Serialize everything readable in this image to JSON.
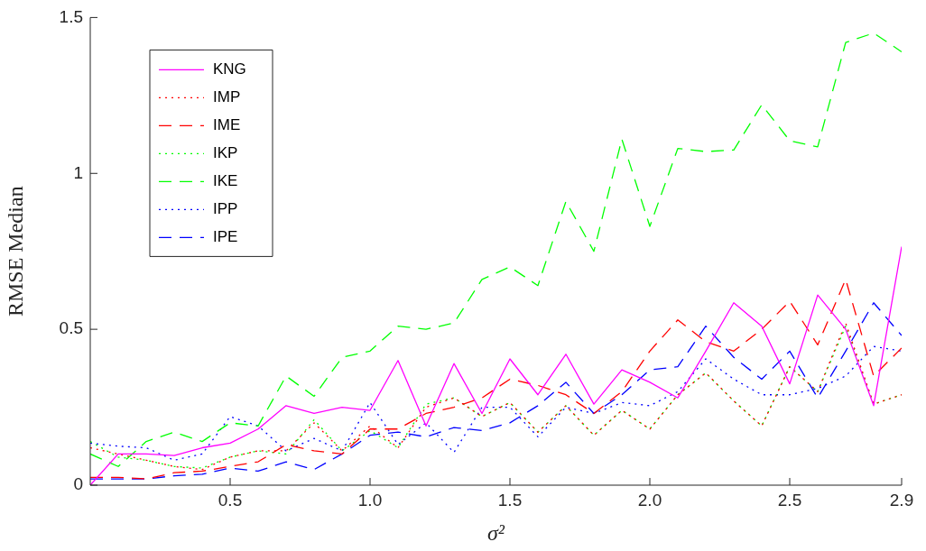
{
  "chart_data": {
    "type": "line",
    "xlabel": "σ²",
    "ylabel": "RMSE Median",
    "x": [
      0,
      0.1,
      0.2,
      0.3,
      0.4,
      0.5,
      0.6,
      0.7,
      0.8,
      0.9,
      1.0,
      1.1,
      1.2,
      1.3,
      1.4,
      1.5,
      1.6,
      1.7,
      1.8,
      1.9,
      2.0,
      2.1,
      2.2,
      2.3,
      2.4,
      2.5,
      2.6,
      2.7,
      2.8,
      2.9
    ],
    "xlim": [
      0,
      2.9
    ],
    "xticks": [
      0.5,
      {
        "value": 1,
        "label": "1.0"
      },
      1.5,
      {
        "value": 2,
        "label": "2.0"
      },
      2.5,
      2.9
    ],
    "ylim": [
      0,
      1.5
    ],
    "yticks": [
      0,
      0.5,
      1,
      1.5
    ],
    "grid": false,
    "legend": "top left",
    "marker": "none",
    "series": [
      {
        "name": "KNG",
        "color": "#ff00ff",
        "line_style": "solid",
        "values": [
          0.0,
          0.1,
          0.1,
          0.095,
          0.12,
          0.135,
          0.18,
          0.255,
          0.23,
          0.25,
          0.24,
          0.4,
          0.19,
          0.39,
          0.23,
          0.405,
          0.29,
          0.42,
          0.26,
          0.37,
          0.33,
          0.28,
          0.43,
          0.585,
          0.51,
          0.325,
          0.61,
          0.5,
          0.255,
          0.765
        ]
      },
      {
        "name": "IMP",
        "color": "#ff0000",
        "line_style": "dotted",
        "values": [
          0.12,
          0.1,
          0.08,
          0.06,
          0.05,
          0.09,
          0.11,
          0.11,
          0.2,
          0.11,
          0.19,
          0.12,
          0.25,
          0.28,
          0.22,
          0.265,
          0.17,
          0.255,
          0.16,
          0.24,
          0.18,
          0.29,
          0.36,
          0.27,
          0.19,
          0.38,
          0.3,
          0.52,
          0.26,
          0.29
        ]
      },
      {
        "name": "IME",
        "color": "#ff0000",
        "line_style": "dashed",
        "values": [
          0.025,
          0.025,
          0.02,
          0.04,
          0.045,
          0.06,
          0.075,
          0.13,
          0.11,
          0.1,
          0.18,
          0.18,
          0.23,
          0.25,
          0.28,
          0.34,
          0.32,
          0.29,
          0.23,
          0.3,
          0.43,
          0.53,
          0.46,
          0.43,
          0.5,
          0.59,
          0.45,
          0.66,
          0.35,
          0.44
        ]
      },
      {
        "name": "IKP",
        "color": "#00ff00",
        "line_style": "dotted",
        "values": [
          0.14,
          0.09,
          0.08,
          0.06,
          0.055,
          0.09,
          0.11,
          0.1,
          0.21,
          0.11,
          0.175,
          0.12,
          0.26,
          0.28,
          0.22,
          0.265,
          0.17,
          0.255,
          0.16,
          0.24,
          0.18,
          0.29,
          0.36,
          0.27,
          0.19,
          0.38,
          0.3,
          0.51,
          0.26,
          0.29
        ]
      },
      {
        "name": "IKE",
        "color": "#00ff00",
        "line_style": "dashed",
        "values": [
          0.1,
          0.06,
          0.14,
          0.17,
          0.14,
          0.2,
          0.19,
          0.35,
          0.285,
          0.41,
          0.43,
          0.51,
          0.5,
          0.52,
          0.66,
          0.7,
          0.64,
          0.91,
          0.75,
          1.11,
          0.83,
          1.08,
          1.07,
          1.075,
          1.22,
          1.105,
          1.085,
          1.42,
          1.45,
          1.39
        ]
      },
      {
        "name": "IPP",
        "color": "#0000ff",
        "line_style": "dotted",
        "values": [
          0.135,
          0.125,
          0.12,
          0.08,
          0.1,
          0.22,
          0.19,
          0.11,
          0.15,
          0.11,
          0.265,
          0.13,
          0.2,
          0.105,
          0.25,
          0.25,
          0.155,
          0.25,
          0.23,
          0.265,
          0.255,
          0.3,
          0.405,
          0.34,
          0.29,
          0.29,
          0.31,
          0.35,
          0.445,
          0.43
        ]
      },
      {
        "name": "IPE",
        "color": "#0000ff",
        "line_style": "dashed",
        "values": [
          0.02,
          0.02,
          0.02,
          0.03,
          0.035,
          0.055,
          0.045,
          0.075,
          0.05,
          0.1,
          0.16,
          0.17,
          0.155,
          0.185,
          0.175,
          0.2,
          0.255,
          0.33,
          0.23,
          0.29,
          0.37,
          0.38,
          0.51,
          0.41,
          0.34,
          0.43,
          0.28,
          0.43,
          0.585,
          0.48
        ]
      }
    ]
  }
}
